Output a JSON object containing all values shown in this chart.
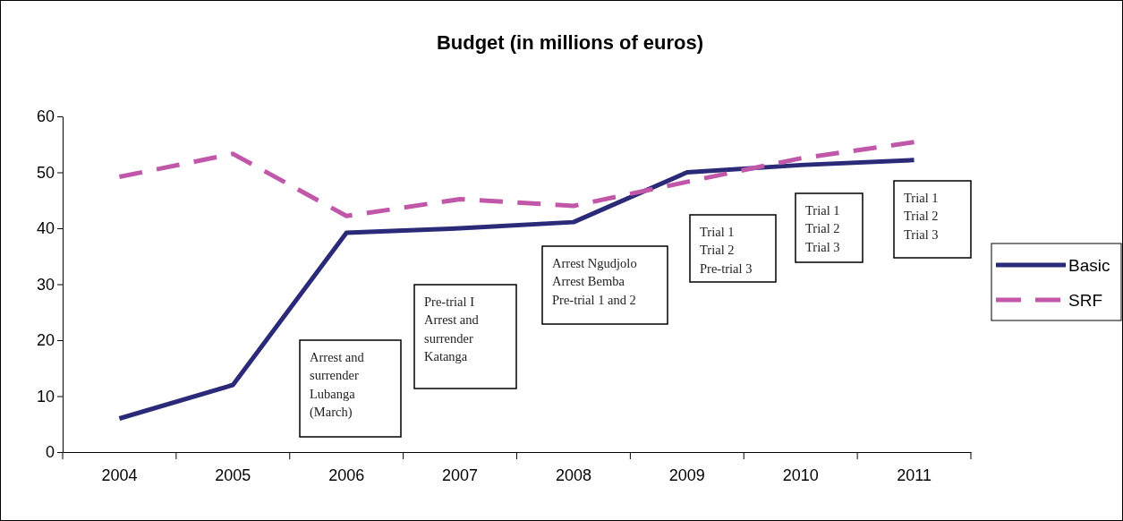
{
  "chart_data": {
    "type": "line",
    "title": "Budget (in millions of euros)",
    "categories": [
      "2004",
      "2005",
      "2006",
      "2007",
      "2008",
      "2009",
      "2010",
      "2011"
    ],
    "series": [
      {
        "name": "Basic",
        "color": "#2b2a78",
        "line_style": "solid",
        "values": [
          6,
          12,
          39.2,
          40,
          41.1,
          50,
          51.3,
          52.2
        ]
      },
      {
        "name": "SRF",
        "color": "#c157a8",
        "line_style": "dashed",
        "values": [
          49.2,
          53.3,
          42.2,
          45.2,
          44,
          48.3,
          52.5,
          55.4
        ]
      }
    ],
    "ylim": [
      0,
      60
    ],
    "yticks": [
      0,
      10,
      20,
      30,
      40,
      50,
      60
    ],
    "grid": false,
    "legend": "right",
    "marker": "none",
    "annotations": [
      "Arrest and\nsurrender\nLubanga\n(March)",
      "Pre-trial I\nArrest and\nsurrender\nKatanga",
      "Arrest Ngudjolo\nArrest Bemba\nPre-trial 1 and 2",
      "Trial 1\nTrial 2\nPre-trial 3",
      "Trial 1\nTrial 2\nTrial 3",
      "Trial 1\nTrial 2\nTrial 3"
    ]
  }
}
